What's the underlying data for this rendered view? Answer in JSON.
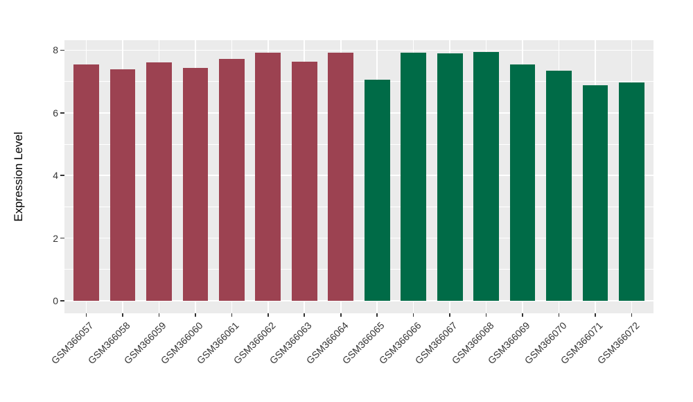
{
  "chart_data": {
    "type": "bar",
    "title": "",
    "xlabel": "",
    "ylabel": "Expression Level",
    "categories": [
      "GSM366057",
      "GSM366058",
      "GSM366059",
      "GSM366060",
      "GSM366061",
      "GSM366062",
      "GSM366063",
      "GSM366064",
      "GSM366065",
      "GSM366066",
      "GSM366067",
      "GSM366068",
      "GSM366069",
      "GSM366070",
      "GSM366071",
      "GSM366072"
    ],
    "values": [
      7.54,
      7.39,
      7.62,
      7.44,
      7.72,
      7.92,
      7.64,
      7.92,
      7.05,
      7.92,
      7.89,
      7.94,
      7.55,
      7.34,
      6.88,
      6.96
    ],
    "bar_colors": [
      "#9C4251",
      "#9C4251",
      "#9C4251",
      "#9C4251",
      "#9C4251",
      "#9C4251",
      "#9C4251",
      "#9C4251",
      "#006B47",
      "#006B47",
      "#006B47",
      "#006B47",
      "#006B47",
      "#006B47",
      "#006B47",
      "#006B47"
    ],
    "group_colors": {
      "group1": "#9C4251",
      "group2": "#006B47"
    },
    "y_ticks": [
      0,
      2,
      4,
      6,
      8
    ],
    "y_minor_ticks": [
      1,
      3,
      5,
      7
    ],
    "ylim": [
      -0.4,
      8.32
    ],
    "grid": true,
    "legend_position": "none",
    "panel_bg": "#EBEBEB",
    "grid_color": "#FFFFFF",
    "axis_text_color": "#333333",
    "tick_color": "#333333",
    "x_label_rotation_deg": 45
  }
}
